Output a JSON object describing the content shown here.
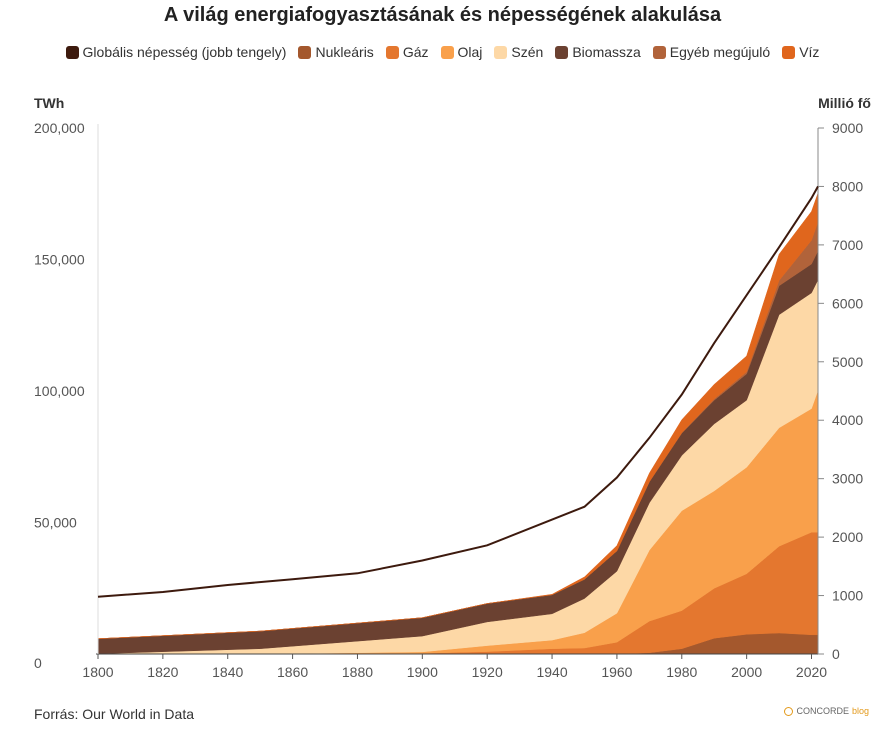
{
  "title": "A világ energiafogyasztásának és népességének alakulása",
  "source": "Forrás: Our World in Data",
  "logo_text": "CONCORDE",
  "logo_suffix": "blog",
  "colors": {
    "population": "#3d1a0e",
    "nuclear": "#a4582d",
    "gas": "#e4772f",
    "oil": "#f9a04b",
    "coal": "#fdd8a6",
    "biomass": "#6b4131",
    "other_renewables": "#b1633a",
    "hydro": "#e0661d"
  },
  "chart_data": {
    "type": "area",
    "title": "A világ energiafogyasztásának és népességének alakulása",
    "xlabel": "",
    "ylabel": "TWh",
    "ylabel_right": "Millió fő",
    "xlim": [
      1800,
      2022
    ],
    "ylim": [
      0,
      200000
    ],
    "ylim_right": [
      0,
      9000
    ],
    "x_ticks": [
      1800,
      1820,
      1840,
      1860,
      1880,
      1900,
      1920,
      1940,
      1960,
      1980,
      2000,
      2020
    ],
    "y_ticks": [
      0,
      50000,
      100000,
      150000,
      200000
    ],
    "y_tick_labels": [
      "0",
      "50,000",
      "100,000",
      "150,000",
      "200,000"
    ],
    "y_ticks_right": [
      0,
      1000,
      2000,
      3000,
      4000,
      5000,
      6000,
      7000,
      8000,
      9000
    ],
    "grid": false,
    "legend_position": "top",
    "legend": [
      {
        "label": "Globális népesség (jobb tengely)",
        "key": "population"
      },
      {
        "label": "Nukleáris",
        "key": "nuclear"
      },
      {
        "label": "Gáz",
        "key": "gas"
      },
      {
        "label": "Olaj",
        "key": "oil"
      },
      {
        "label": "Szén",
        "key": "coal"
      },
      {
        "label": "Biomassza",
        "key": "biomass"
      },
      {
        "label": "Egyéb megújuló",
        "key": "other_renewables"
      },
      {
        "label": "Víz",
        "key": "hydro"
      }
    ],
    "x": [
      1800,
      1850,
      1900,
      1920,
      1940,
      1950,
      1960,
      1970,
      1980,
      1990,
      2000,
      2010,
      2020,
      2022
    ],
    "stack_order": [
      "nuclear",
      "gas",
      "oil",
      "coal",
      "biomass",
      "other_renewables",
      "hydro"
    ],
    "series": [
      {
        "key": "nuclear",
        "name": "Nukleáris",
        "values": [
          0,
          0,
          0,
          0,
          0,
          0,
          0,
          500,
          2000,
          6000,
          7500,
          8000,
          7300,
          7300
        ]
      },
      {
        "key": "gas",
        "name": "Gáz",
        "values": [
          0,
          0,
          300,
          900,
          2000,
          2300,
          4500,
          12000,
          14500,
          19000,
          23000,
          33000,
          39000,
          39000
        ]
      },
      {
        "key": "oil",
        "name": "Olaj",
        "values": [
          0,
          0,
          500,
          2300,
          3300,
          5800,
          11000,
          27000,
          38000,
          37000,
          40500,
          45000,
          47000,
          54000
        ]
      },
      {
        "key": "coal",
        "name": "Szén",
        "values": [
          100,
          2000,
          6000,
          9000,
          10000,
          13000,
          16000,
          18000,
          21000,
          25500,
          25500,
          43000,
          44000,
          42000
        ]
      },
      {
        "key": "biomass",
        "name": "Biomassza",
        "values": [
          5700,
          6700,
          7000,
          7000,
          7200,
          7300,
          7700,
          8000,
          8500,
          9000,
          10000,
          11000,
          11000,
          11000
        ]
      },
      {
        "key": "other_renewables",
        "name": "Egyéb megújuló",
        "values": [
          0,
          0,
          0,
          0,
          0,
          0,
          0,
          0,
          100,
          500,
          800,
          2000,
          9000,
          11000
        ]
      },
      {
        "key": "hydro",
        "name": "Víz",
        "values": [
          0,
          0,
          0,
          0,
          200,
          900,
          2000,
          3300,
          5000,
          5500,
          6000,
          10000,
          11000,
          11000
        ]
      }
    ],
    "population": {
      "name": "Globális népesség (jobb tengely)",
      "axis": "right",
      "x": [
        1800,
        1820,
        1840,
        1860,
        1880,
        1900,
        1920,
        1940,
        1950,
        1960,
        1970,
        1980,
        1990,
        2000,
        2010,
        2020,
        2022
      ],
      "values": [
        980,
        1060,
        1180,
        1280,
        1380,
        1600,
        1860,
        2300,
        2520,
        3020,
        3700,
        4440,
        5320,
        6140,
        6960,
        7800,
        8000
      ]
    }
  }
}
